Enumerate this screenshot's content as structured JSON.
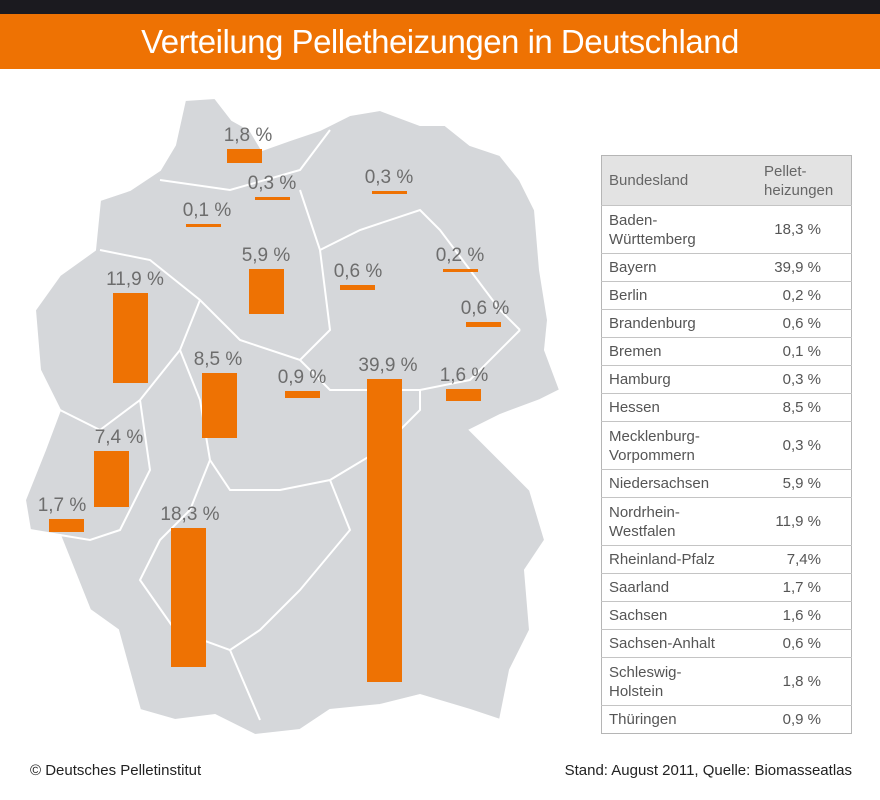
{
  "header": {
    "title": "Verteilung Pelletheizungen in Deutschland"
  },
  "footer": {
    "copyright": "© Deutsches Pelletinstitut",
    "source": "Stand: August 2011, Quelle: Biomasseatlas"
  },
  "colors": {
    "accent": "#ee7203",
    "map": "#d5d7da",
    "header_row": "#e3e3e3"
  },
  "chart_data": {
    "type": "bar",
    "title": "Verteilung Pelletheizungen in Deutschland",
    "unit": "%",
    "bars": [
      {
        "state": "Schleswig-Holstein",
        "value": 1.8,
        "label": "1,8 %"
      },
      {
        "state": "Hamburg",
        "value": 0.3,
        "label": "0,3 %"
      },
      {
        "state": "Mecklenburg-Vorpommern",
        "value": 0.3,
        "label": "0,3 %"
      },
      {
        "state": "Bremen",
        "value": 0.1,
        "label": "0,1 %"
      },
      {
        "state": "Niedersachsen",
        "value": 5.9,
        "label": "5,9 %"
      },
      {
        "state": "Sachsen-Anhalt",
        "value": 0.6,
        "label": "0,6 %"
      },
      {
        "state": "Berlin",
        "value": 0.2,
        "label": "0,2 %"
      },
      {
        "state": "Brandenburg",
        "value": 0.6,
        "label": "0,6 %"
      },
      {
        "state": "Nordrhein-Westfalen",
        "value": 11.9,
        "label": "11,9 %"
      },
      {
        "state": "Hessen",
        "value": 8.5,
        "label": "8,5 %"
      },
      {
        "state": "Thüringen",
        "value": 0.9,
        "label": "0,9 %"
      },
      {
        "state": "Bayern",
        "value": 39.9,
        "label": "39,9 %"
      },
      {
        "state": "Sachsen",
        "value": 1.6,
        "label": "1,6 %"
      },
      {
        "state": "Rheinland-Pfalz",
        "value": 7.4,
        "label": "7,4 %"
      },
      {
        "state": "Saarland",
        "value": 1.7,
        "label": "1,7 %"
      },
      {
        "state": "Baden-Württemberg",
        "value": 18.3,
        "label": "18,3 %"
      }
    ]
  },
  "table": {
    "headers": [
      "Bundesland",
      "Pellet-\nheizungen"
    ],
    "rows": [
      {
        "name": "Baden-\nWürttemberg",
        "value": "18,3 %"
      },
      {
        "name": "Bayern",
        "value": "39,9 %"
      },
      {
        "name": "Berlin",
        "value": "0,2 %"
      },
      {
        "name": "Brandenburg",
        "value": "0,6 %"
      },
      {
        "name": "Bremen",
        "value": "0,1 %"
      },
      {
        "name": "Hamburg",
        "value": "0,3 %"
      },
      {
        "name": "Hessen",
        "value": "8,5 %"
      },
      {
        "name": "Mecklenburg-\nVorpommern",
        "value": "0,3 %"
      },
      {
        "name": "Niedersachsen",
        "value": "5,9 %"
      },
      {
        "name": "Nordrhein-\nWestfalen",
        "value": "11,9 %"
      },
      {
        "name": "Rheinland-Pfalz",
        "value": "7,4%"
      },
      {
        "name": "Saarland",
        "value": "1,7 %"
      },
      {
        "name": "Sachsen",
        "value": "1,6 %"
      },
      {
        "name": "Sachsen-Anhalt",
        "value": "0,6 %"
      },
      {
        "name": "Schleswig-\nHolstein",
        "value": "1,8 %"
      },
      {
        "name": "Thüringen",
        "value": "0,9 %"
      }
    ]
  }
}
